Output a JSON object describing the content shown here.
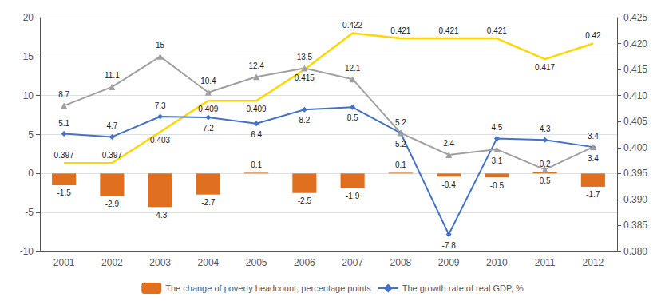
{
  "chart_data": {
    "type": "bar",
    "categories": [
      2001,
      2002,
      2003,
      2004,
      2005,
      2006,
      2007,
      2008,
      2009,
      2010,
      2011,
      2012
    ],
    "series": [
      {
        "name": "The change of poverty headcount, percentage points",
        "type": "bar",
        "color": "#E07020",
        "values": [
          -1.5,
          -2.9,
          -4.3,
          -2.7,
          0.1,
          -2.5,
          -1.9,
          0.1,
          -0.4,
          -0.5,
          0.2,
          -1.7
        ]
      },
      {
        "type": "line",
        "color": "#FFD700",
        "axis": "y2",
        "marker": "none",
        "values": [
          0.397,
          0.397,
          0.403,
          0.409,
          0.409,
          0.415,
          0.422,
          0.421,
          0.421,
          0.421,
          0.417,
          0.42
        ]
      },
      {
        "name": "The growth rate of real GDP, %",
        "type": "line",
        "color": "#4472C4",
        "marker": "diamond",
        "values": [
          5.1,
          4.7,
          7.3,
          7.2,
          6.4,
          8.2,
          8.5,
          5.2,
          -7.8,
          4.5,
          4.3,
          3.4
        ]
      },
      {
        "type": "line",
        "color": "#A0A0A0",
        "marker": "triangle",
        "values": [
          8.7,
          11.1,
          15,
          10.4,
          12.4,
          13.5,
          12.1,
          5.2,
          2.4,
          3.1,
          0.5,
          3.4
        ]
      }
    ],
    "ylim": [
      -10,
      20
    ],
    "yticks": [
      -10,
      -5,
      0,
      5,
      10,
      15,
      20
    ],
    "y2lim": [
      0.38,
      0.425
    ],
    "y2ticks": [
      {
        "value": 0.38,
        "label": "0.380"
      },
      0.385,
      {
        "value": 0.39,
        "label": "0.390"
      },
      0.395,
      {
        "value": 0.4,
        "label": "0.400"
      },
      0.405,
      {
        "value": 0.41,
        "label": "0.410"
      },
      0.415,
      {
        "value": 0.42,
        "label": "0.420"
      },
      0.425
    ],
    "grid": true,
    "legend": "bottom",
    "data_labels": true
  }
}
